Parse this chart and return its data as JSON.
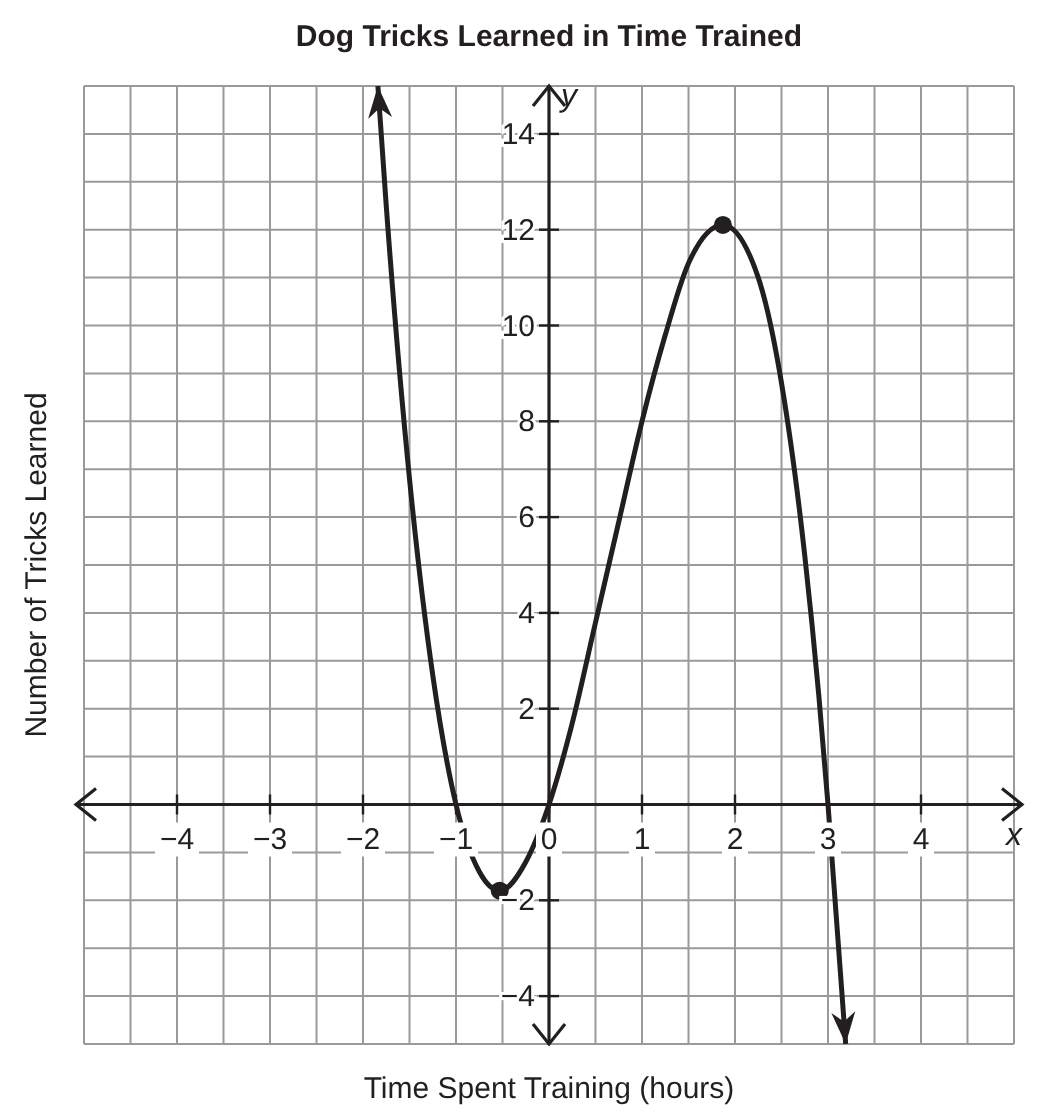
{
  "chart_data": {
    "type": "line",
    "title": "Dog Tricks Learned in Time Trained",
    "xlabel": "Time Spent Training (hours)",
    "ylabel": "Number of Tricks Learned",
    "annotations": [
      "x",
      "y"
    ],
    "xlim": [
      -5,
      5
    ],
    "ylim": [
      -5,
      15
    ],
    "xticks": [
      {
        "value": -5,
        "label": null
      },
      {
        "value": -4.5,
        "label": null
      },
      -4,
      {
        "value": -3.5,
        "label": null
      },
      -3,
      {
        "value": -2.5,
        "label": null
      },
      -2,
      {
        "value": -1.5,
        "label": null
      },
      -1,
      {
        "value": -0.5,
        "label": null
      },
      0,
      {
        "value": 0.5,
        "label": null
      },
      1,
      {
        "value": 1.5,
        "label": null
      },
      2,
      {
        "value": 2.5,
        "label": null
      },
      3,
      {
        "value": 3.5,
        "label": null
      },
      4,
      {
        "value": 4.5,
        "label": null
      },
      {
        "value": 5,
        "label": null
      }
    ],
    "yticks": [
      {
        "value": -5,
        "label": null
      },
      -4,
      {
        "value": -3,
        "label": null
      },
      -2,
      {
        "value": -1,
        "label": null
      },
      {
        "value": 0,
        "label": null
      },
      {
        "value": 1,
        "label": null
      },
      2,
      {
        "value": 3,
        "label": null
      },
      4,
      {
        "value": 5,
        "label": null
      },
      6,
      {
        "value": 7,
        "label": null
      },
      8,
      {
        "value": 9,
        "label": null
      },
      10,
      {
        "value": 11,
        "label": null
      },
      12,
      {
        "value": 13,
        "label": null
      },
      14,
      {
        "value": 15,
        "label": null
      }
    ],
    "grid": true,
    "series": [
      {
        "color": "#231f20",
        "marker": "none",
        "x": [
          -1.84,
          -1.75,
          -1.5,
          -1.25,
          -1,
          -0.75,
          -0.53,
          -0.25,
          0,
          0.25,
          0.5,
          0.75,
          1,
          1.25,
          1.5,
          1.87,
          2.25,
          2.5,
          2.75,
          2.9,
          3,
          3.19
        ],
        "values": [
          15,
          12.5,
          6.8,
          2.7,
          0,
          -1.4,
          -1.8,
          -1.2,
          0,
          1.7,
          3.8,
          5.9,
          8,
          9.8,
          11.3,
          12.1,
          11,
          8.8,
          5.2,
          2.3,
          0,
          -5
        ]
      },
      {
        "type": "scatter",
        "color": "#231f20",
        "marker": "circle",
        "x": [
          -0.53,
          1.87
        ],
        "values": [
          -1.8,
          12.1
        ]
      }
    ]
  }
}
